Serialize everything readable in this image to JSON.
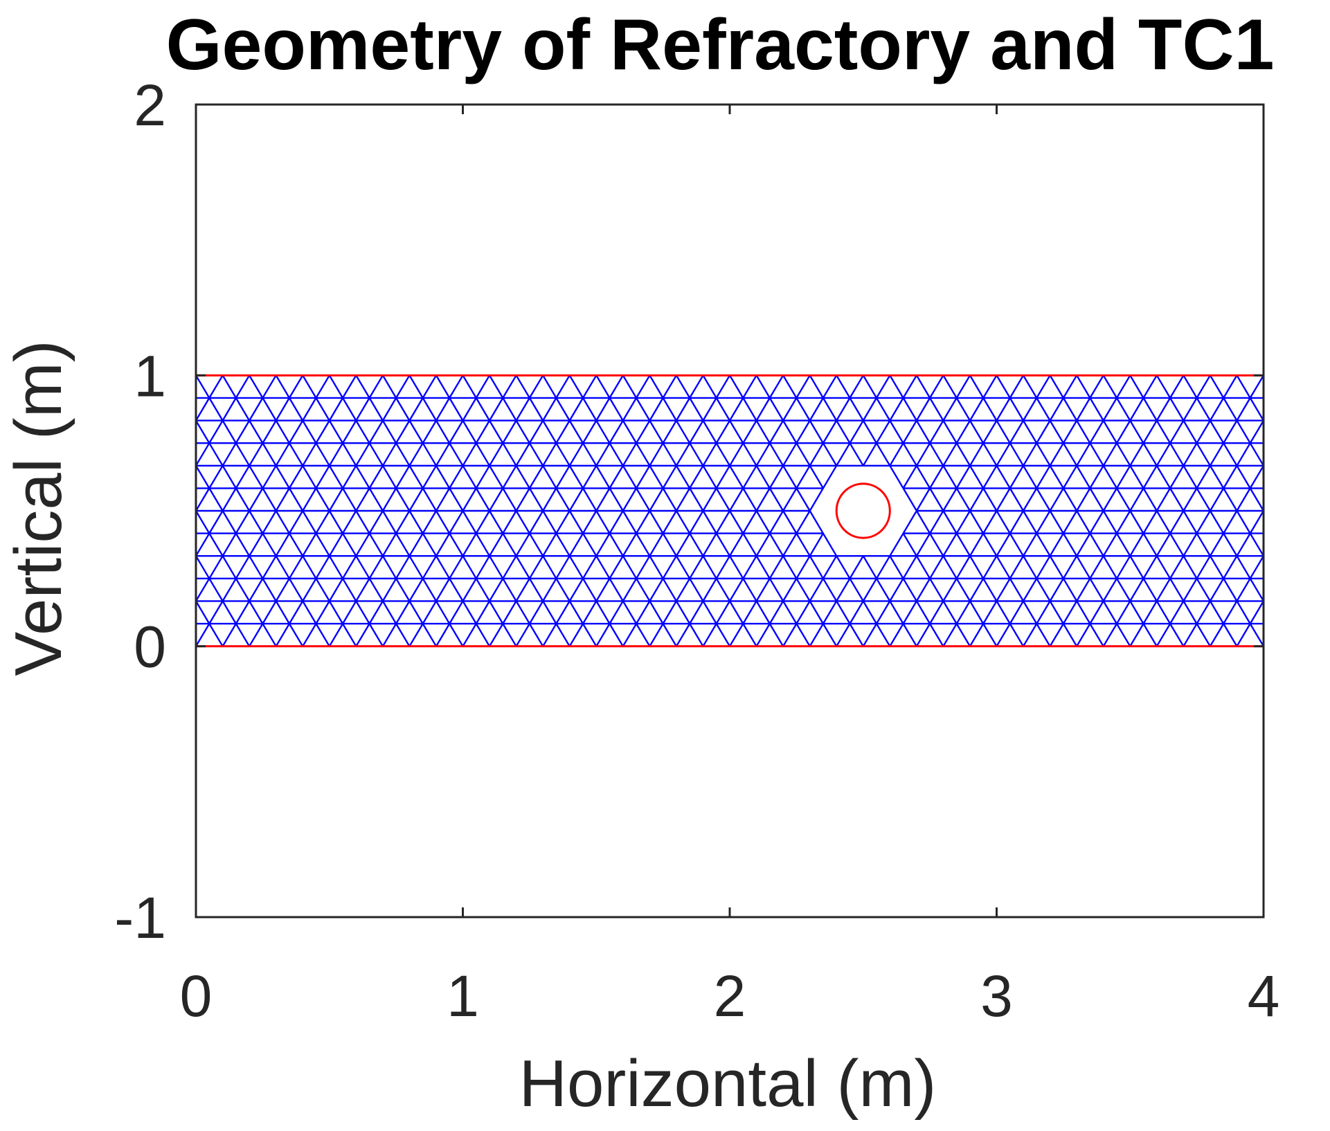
{
  "chart_data": {
    "type": "mesh",
    "title": "Geometry of Refractory and TC1",
    "xlabel": "Horizontal (m)",
    "ylabel": "Vertical (m)",
    "xlim": [
      0,
      4
    ],
    "ylim": [
      -1,
      2
    ],
    "xticks": [
      0,
      1,
      2,
      3,
      4
    ],
    "yticks": [
      -1,
      0,
      1,
      2
    ],
    "xtick_labels": [
      "0",
      "1",
      "2",
      "3",
      "4"
    ],
    "ytick_labels": [
      "-1",
      "0",
      "1",
      "2"
    ],
    "grid": false,
    "domain": {
      "rectangle": {
        "x": [
          0,
          4
        ],
        "y": [
          0,
          1
        ]
      },
      "hole": {
        "center": [
          2.5,
          0.5
        ],
        "radius": 0.1
      }
    },
    "mesh_element": "triangle",
    "mesh_spacing": 0.1,
    "colors": {
      "mesh_edges": "#0000ff",
      "geometry_boundary": "#ff0000",
      "axes": "#262626",
      "title": "#000000"
    }
  }
}
